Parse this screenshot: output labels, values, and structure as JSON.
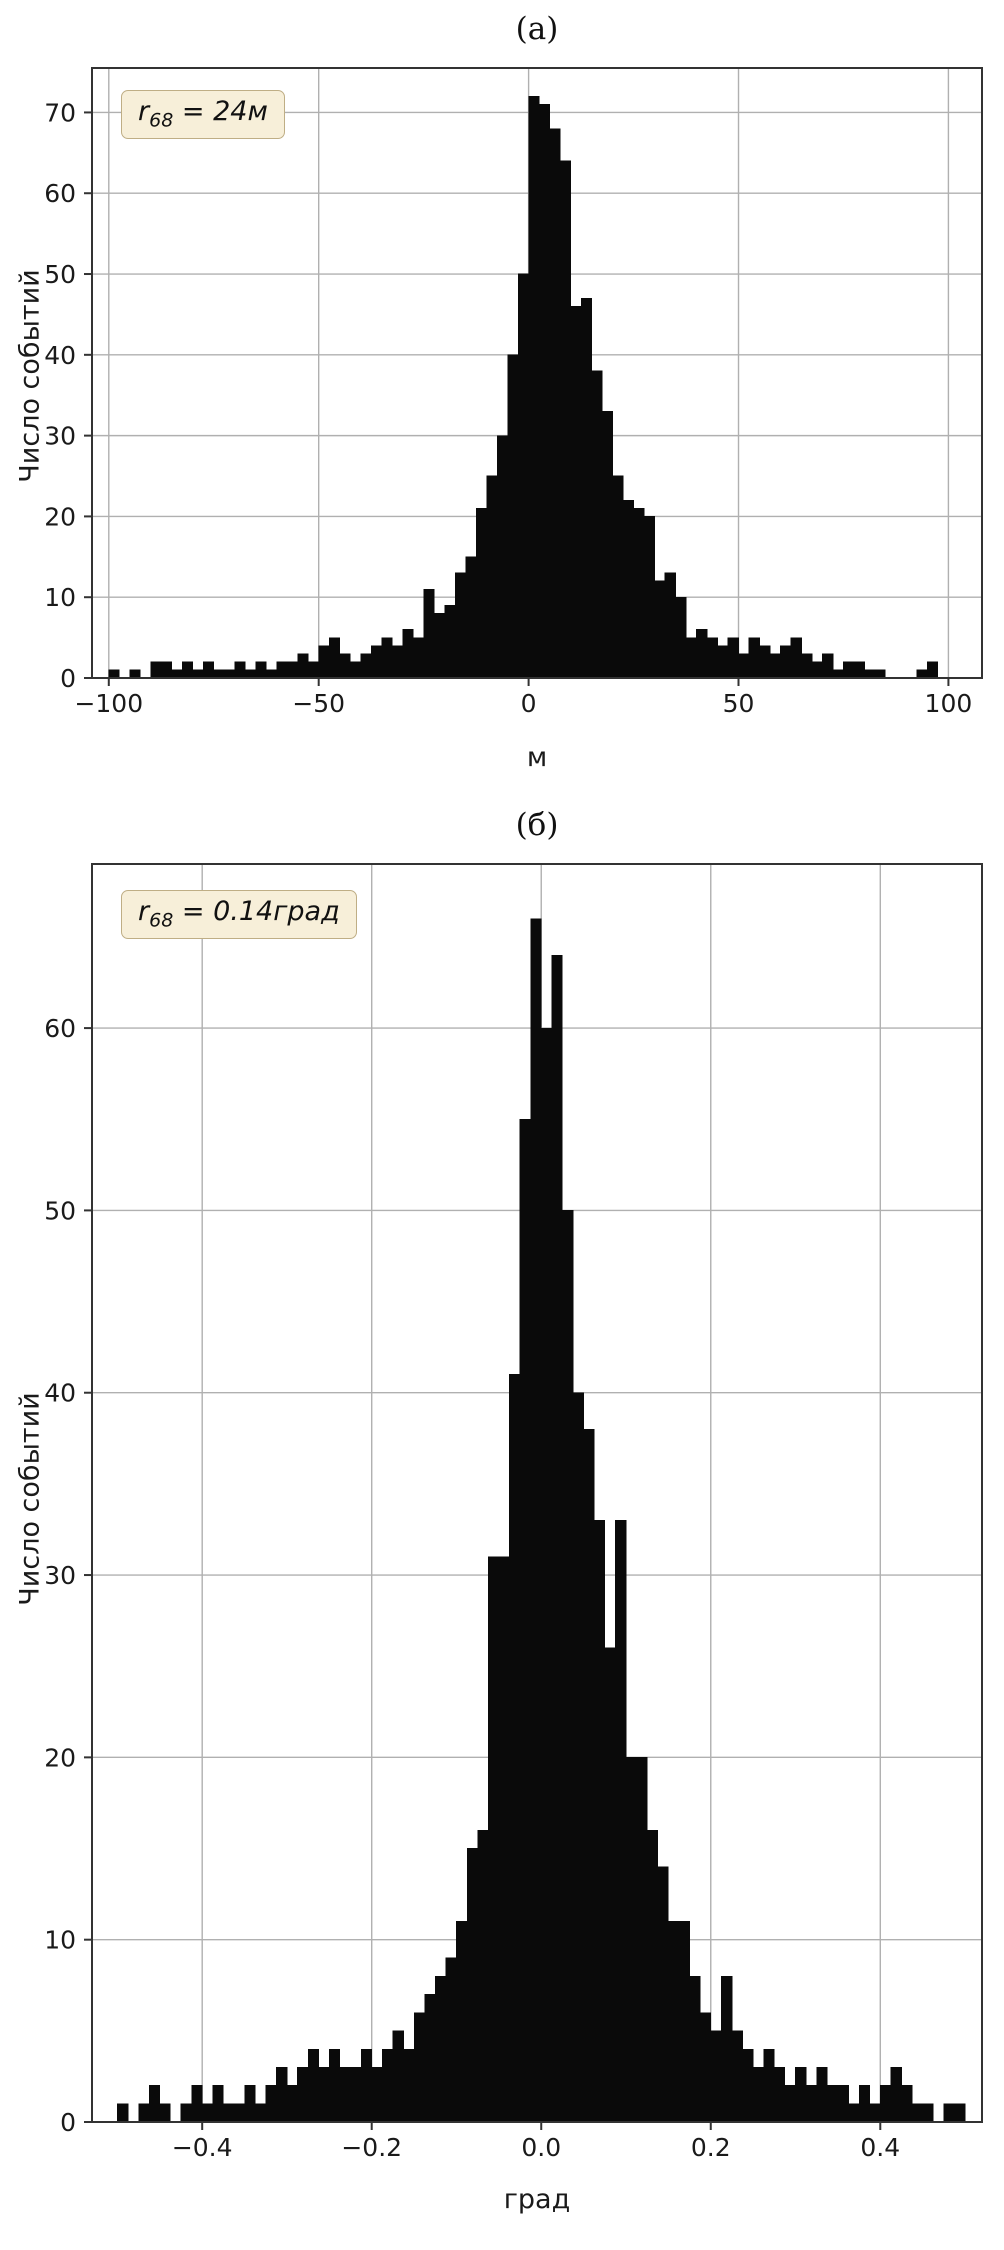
{
  "palette": {
    "bar_color": "#0a0a0a",
    "grid_color": "#b0b0b0",
    "axis_color": "#333333",
    "tick_label_color": "#1a1a1a",
    "annotation_bg": "#f7efd9",
    "annotation_border": "#bfae85",
    "background": "#ffffff"
  },
  "chart_data": [
    {
      "type": "bar",
      "title": "(а)",
      "xlabel": "м",
      "ylabel": "Число событий",
      "annotation": {
        "symbol": "r",
        "subscript": "68",
        "value": " = 24м"
      },
      "annotation_text": "r68 = 24м",
      "xlim": [
        -104,
        108
      ],
      "ylim": [
        0,
        75.5
      ],
      "x_ticks": [
        -100,
        -50,
        0,
        50,
        100
      ],
      "x_tick_labels": [
        "−100",
        "−50",
        "0",
        "50",
        "100"
      ],
      "y_ticks": [
        0,
        10,
        20,
        30,
        40,
        50,
        60,
        70
      ],
      "y_tick_labels": [
        "0",
        "10",
        "20",
        "30",
        "40",
        "50",
        "60",
        "70"
      ],
      "grid": true,
      "bins": {
        "start": -100,
        "width": 2.5
      },
      "counts": [
        1,
        0,
        1,
        0,
        2,
        2,
        1,
        2,
        1,
        2,
        1,
        1,
        2,
        1,
        2,
        1,
        2,
        2,
        3,
        2,
        4,
        5,
        3,
        2,
        3,
        4,
        5,
        4,
        6,
        5,
        11,
        8,
        9,
        13,
        15,
        21,
        25,
        30,
        40,
        50,
        72,
        71,
        68,
        64,
        46,
        47,
        38,
        33,
        25,
        22,
        21,
        20,
        12,
        13,
        10,
        5,
        6,
        5,
        4,
        5,
        3,
        5,
        4,
        3,
        4,
        5,
        3,
        2,
        3,
        1,
        2,
        2,
        1,
        1,
        0,
        0,
        0,
        1,
        2,
        0
      ]
    },
    {
      "type": "bar",
      "title": "(б)",
      "xlabel": "град",
      "ylabel": "Число событий",
      "annotation": {
        "symbol": "r",
        "subscript": "68",
        "value": " = 0.14град"
      },
      "annotation_text": "r68 = 0.14град",
      "xlim": [
        -0.53,
        0.52
      ],
      "ylim": [
        0,
        69
      ],
      "x_ticks": [
        -0.4,
        -0.2,
        0.0,
        0.2,
        0.4
      ],
      "x_tick_labels": [
        "−0.4",
        "−0.2",
        "0.0",
        "0.2",
        "0.4"
      ],
      "y_ticks": [
        0,
        10,
        20,
        30,
        40,
        50,
        60
      ],
      "y_tick_labels": [
        "0",
        "10",
        "20",
        "30",
        "40",
        "50",
        "60"
      ],
      "grid": true,
      "bins": {
        "start": -0.5,
        "width": 0.0125
      },
      "counts": [
        1,
        0,
        1,
        2,
        1,
        0,
        1,
        2,
        1,
        2,
        1,
        1,
        2,
        1,
        2,
        3,
        2,
        3,
        4,
        3,
        4,
        3,
        3,
        4,
        3,
        4,
        5,
        4,
        6,
        7,
        8,
        9,
        11,
        15,
        16,
        31,
        31,
        41,
        55,
        66,
        60,
        64,
        50,
        40,
        38,
        33,
        26,
        33,
        20,
        20,
        16,
        14,
        11,
        11,
        8,
        6,
        5,
        8,
        5,
        4,
        3,
        4,
        3,
        2,
        3,
        2,
        3,
        2,
        2,
        1,
        2,
        1,
        2,
        3,
        2,
        1,
        1,
        0,
        1,
        1
      ]
    }
  ]
}
